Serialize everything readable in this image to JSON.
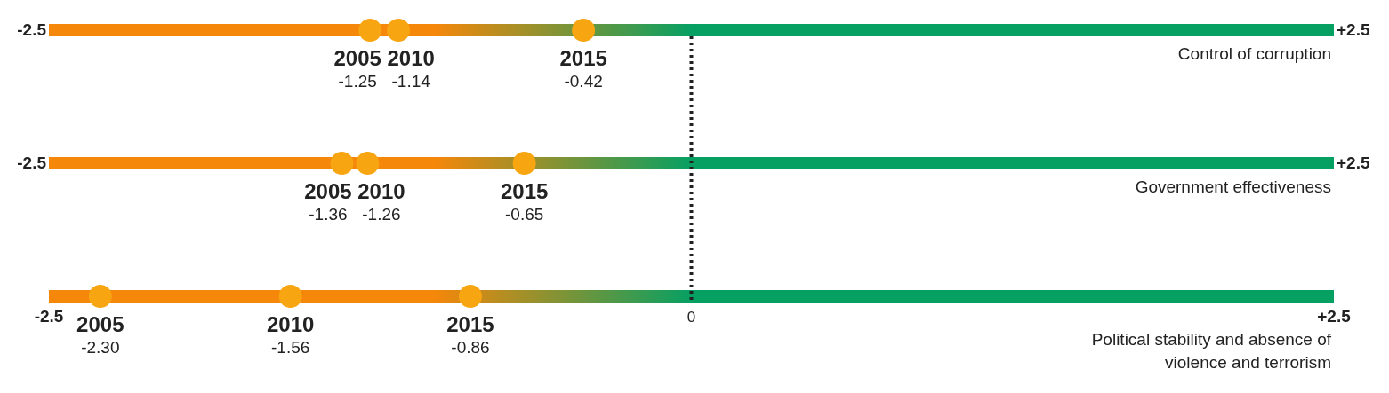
{
  "chart_data": {
    "type": "scatter",
    "orientation": "horizontal",
    "marker": "circle",
    "categories": [
      "Control of corruption",
      "Government effectiveness",
      "Political stability and absence of violence and terrorism"
    ],
    "series": [
      {
        "name": "2005",
        "color": "#f8a512",
        "values": [
          -1.25,
          -1.36,
          -2.3
        ],
        "value_labels": [
          "-1.25",
          "-1.36",
          "-2.30"
        ]
      },
      {
        "name": "2010",
        "color": "#f8a512",
        "values": [
          -1.14,
          -1.26,
          -1.56
        ],
        "value_labels": [
          "-1.14",
          "-1.26",
          "-1.56"
        ]
      },
      {
        "name": "2015",
        "color": "#f8a512",
        "values": [
          -0.42,
          -0.65,
          -0.86
        ],
        "value_labels": [
          "-0.42",
          "-0.65",
          "-0.86"
        ]
      }
    ],
    "xlim": [
      -2.5,
      2.5
    ],
    "xticks": [
      {
        "value": -2.5,
        "label": "-2.5"
      },
      {
        "value": 0,
        "label": "0"
      },
      {
        "value": 2.5,
        "label": "+2.5"
      }
    ],
    "ref_lines": [
      {
        "axis": "x",
        "value": 0,
        "line_style": "dotted",
        "color": "#222222"
      }
    ]
  }
}
